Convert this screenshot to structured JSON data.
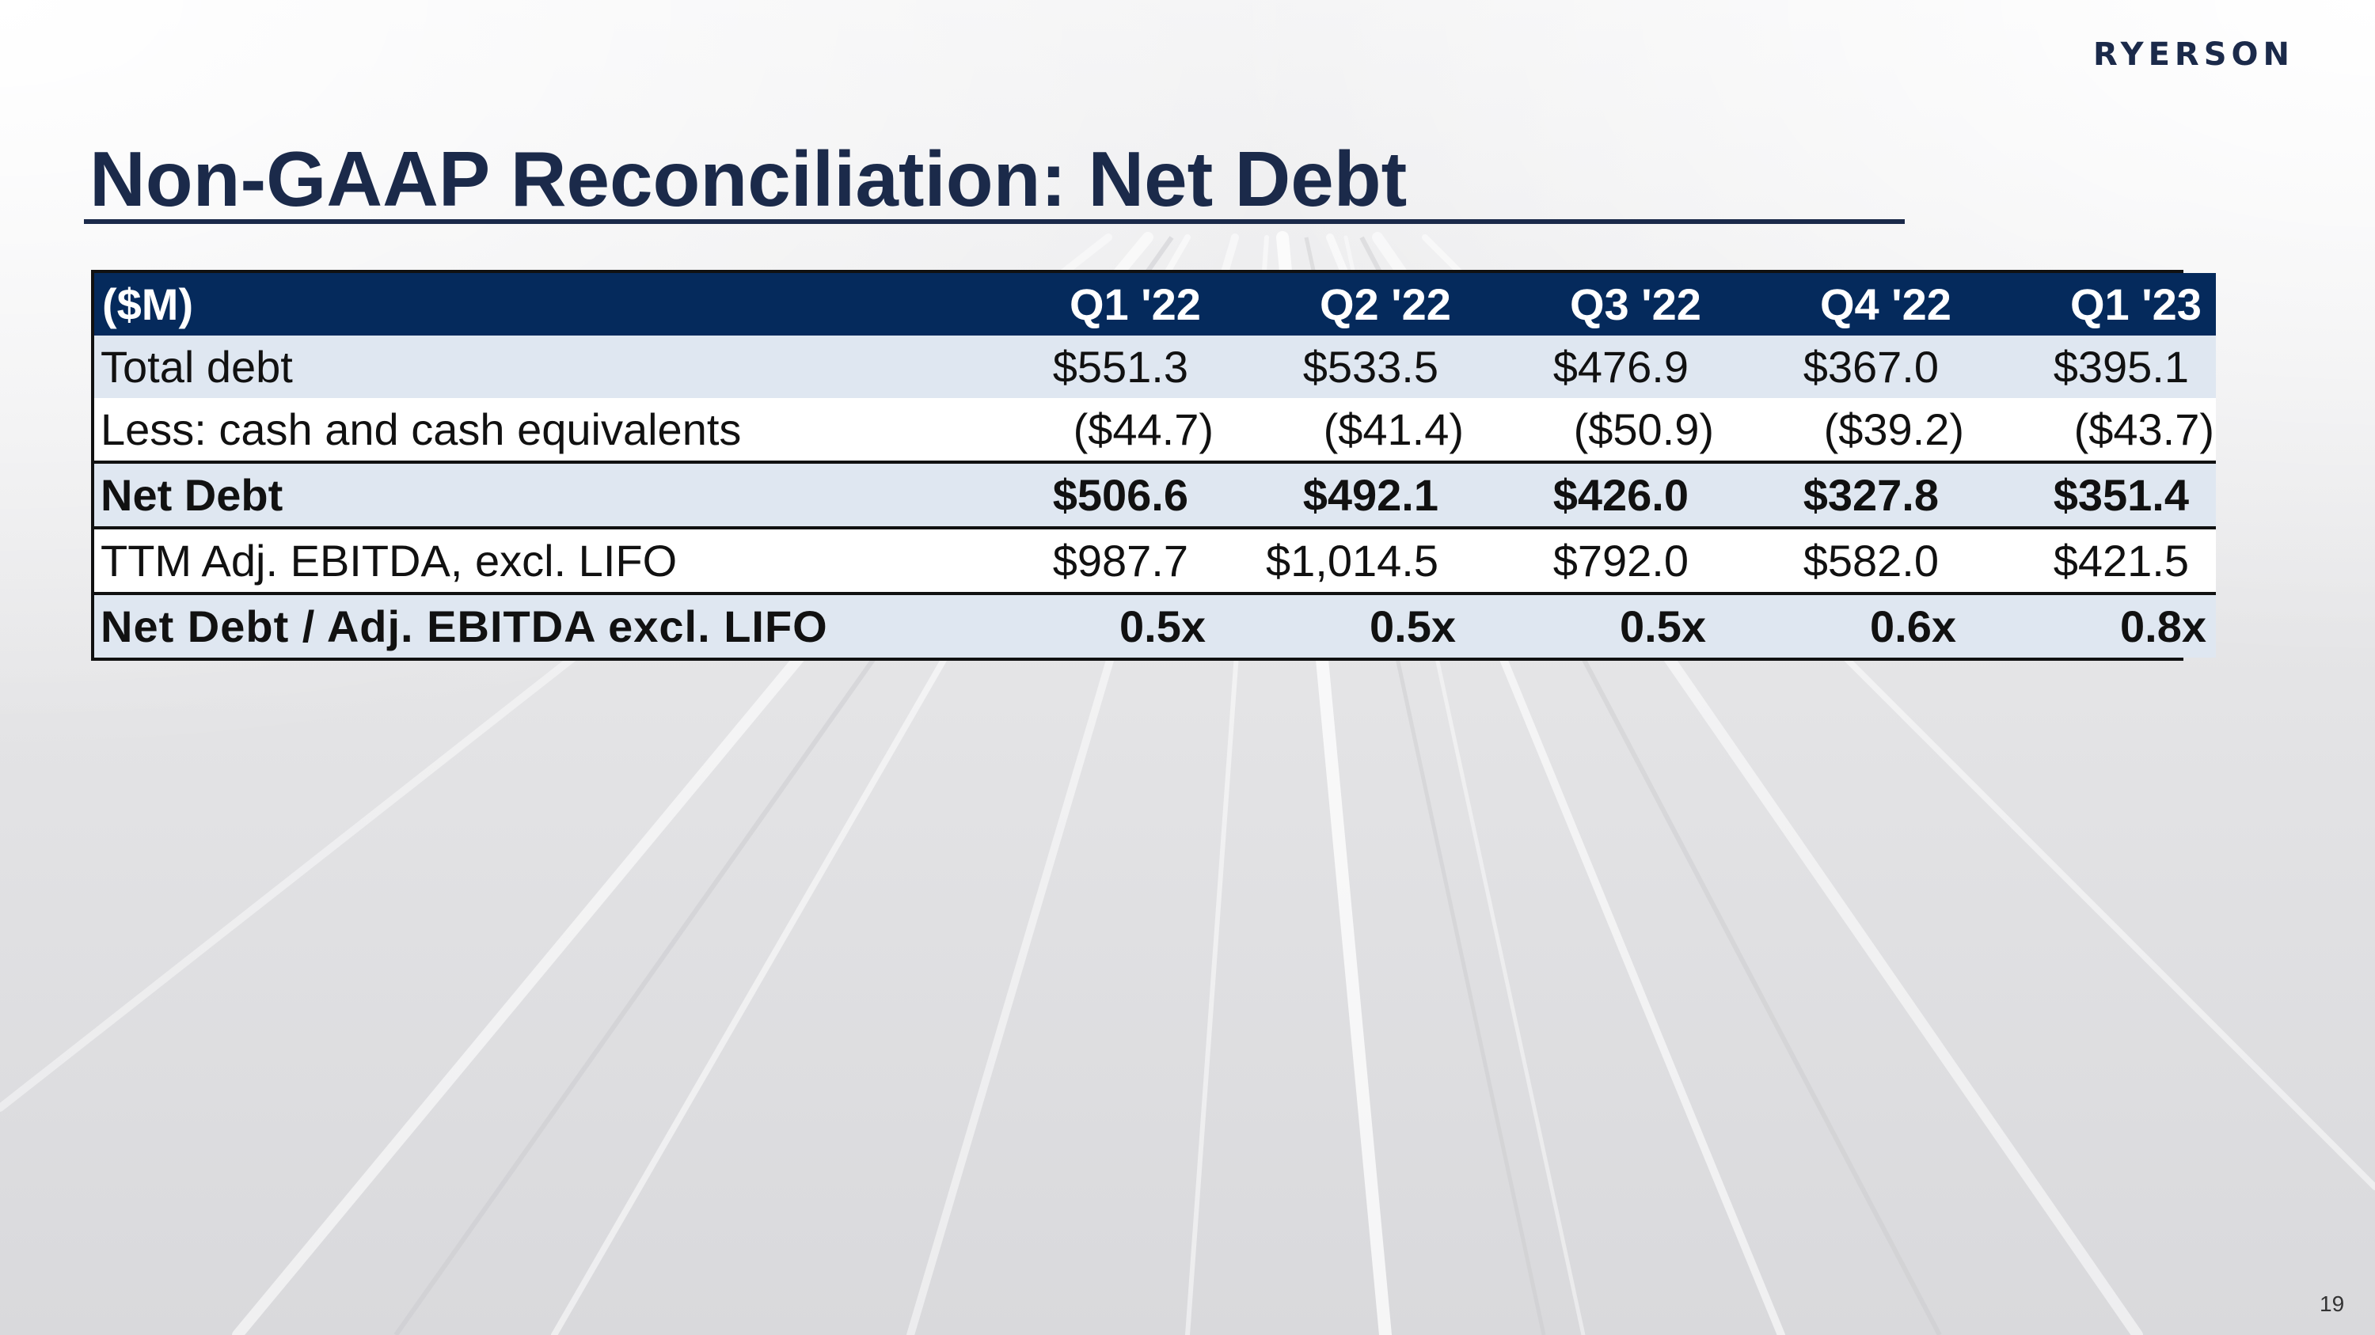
{
  "brand": "RYERSON",
  "title": "Non-GAAP Reconciliation: Net Debt",
  "page_number": "19",
  "colors": {
    "title_navy": "#1b2a4a",
    "header_navy": "#052a5c",
    "row_light_blue": "#dfe7f1"
  },
  "table": {
    "header": {
      "label": "($M)",
      "periods": [
        "Q1 '22",
        "Q2 '22",
        "Q3 '22",
        "Q4 '22",
        "Q1 '23"
      ]
    },
    "rows": [
      {
        "label": "Total debt",
        "values": [
          "$551.3",
          "$533.5",
          "$476.9",
          "$367.0",
          "$395.1"
        ]
      },
      {
        "label": "Less: cash and cash equivalents",
        "values": [
          "($44.7)",
          "($41.4)",
          "($50.9)",
          "($39.2)",
          "($43.7)"
        ]
      },
      {
        "label": "Net Debt",
        "values": [
          "$506.6",
          "$492.1",
          "$426.0",
          "$327.8",
          "$351.4"
        ]
      },
      {
        "label": "TTM Adj. EBITDA, excl. LIFO",
        "values": [
          "$987.7",
          "$1,014.5",
          "$792.0",
          "$582.0",
          "$421.5"
        ]
      },
      {
        "label": "Net Debt / Adj. EBITDA excl. LIFO",
        "values": [
          "0.5x",
          "0.5x",
          "0.5x",
          "0.6x",
          "0.8x"
        ]
      }
    ]
  }
}
